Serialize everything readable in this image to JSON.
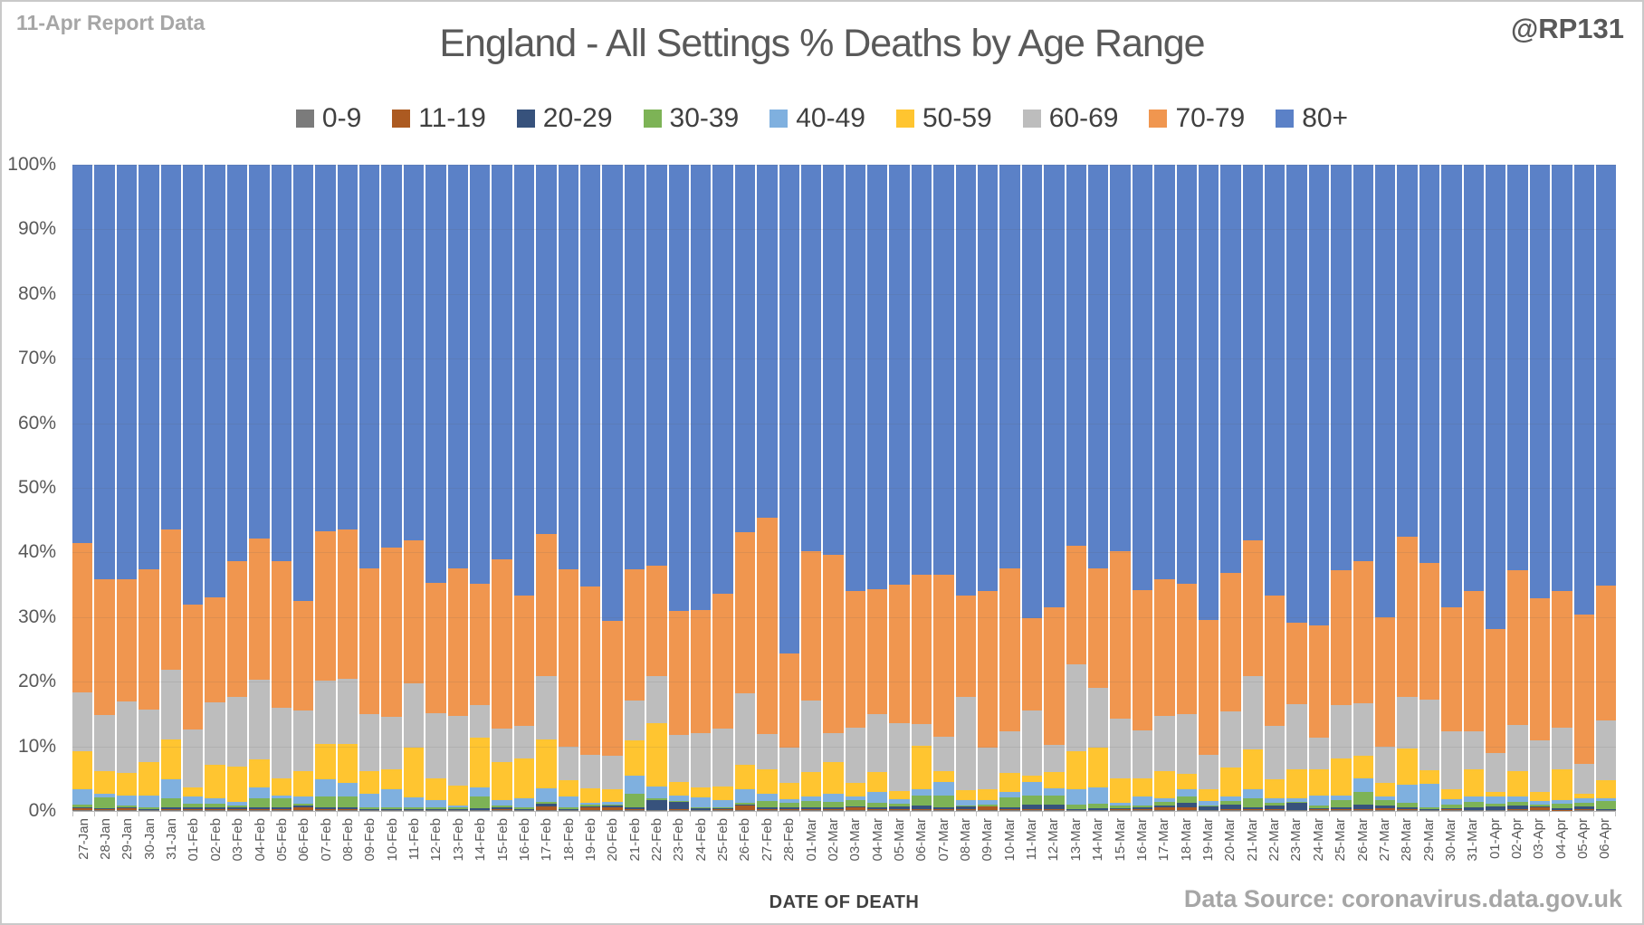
{
  "header": {
    "report_label": "11-Apr Report Data",
    "title": "England - All Settings % Deaths by Age Range",
    "handle": "@RP131"
  },
  "footer": {
    "xaxis_title": "DATE OF DEATH",
    "source": "Data Source: coronavirus.data.gov.uk"
  },
  "colors": {
    "background": "#ffffff",
    "border": "#c9c9c9",
    "text_dark": "#404040",
    "text_gray": "#595959",
    "text_light": "#a6a6a6",
    "gridline": "#d9d9d9"
  },
  "chart_data": {
    "type": "bar",
    "stacked": true,
    "stack_total": 100,
    "title": "England - All Settings % Deaths by Age Range",
    "xlabel": "DATE OF DEATH",
    "ylabel": "",
    "ylim": [
      0,
      100
    ],
    "ytick_step": 10,
    "ytick_labels": [
      "0%",
      "10%",
      "20%",
      "30%",
      "40%",
      "50%",
      "60%",
      "70%",
      "80%",
      "90%",
      "100%"
    ],
    "grid": true,
    "legend_position": "top",
    "categories": [
      "27-Jan",
      "28-Jan",
      "29-Jan",
      "30-Jan",
      "31-Jan",
      "01-Feb",
      "02-Feb",
      "03-Feb",
      "04-Feb",
      "05-Feb",
      "06-Feb",
      "07-Feb",
      "08-Feb",
      "09-Feb",
      "10-Feb",
      "11-Feb",
      "12-Feb",
      "13-Feb",
      "14-Feb",
      "15-Feb",
      "16-Feb",
      "17-Feb",
      "18-Feb",
      "19-Feb",
      "20-Feb",
      "21-Feb",
      "22-Feb",
      "23-Feb",
      "24-Feb",
      "25-Feb",
      "26-Feb",
      "27-Feb",
      "28-Feb",
      "01-Mar",
      "02-Mar",
      "03-Mar",
      "04-Mar",
      "05-Mar",
      "06-Mar",
      "07-Mar",
      "08-Mar",
      "09-Mar",
      "10-Mar",
      "11-Mar",
      "12-Mar",
      "13-Mar",
      "14-Mar",
      "15-Mar",
      "16-Mar",
      "17-Mar",
      "18-Mar",
      "19-Mar",
      "20-Mar",
      "21-Mar",
      "22-Mar",
      "23-Mar",
      "24-Mar",
      "25-Mar",
      "26-Mar",
      "27-Mar",
      "28-Mar",
      "29-Mar",
      "30-Mar",
      "31-Mar",
      "01-Apr",
      "02-Apr",
      "03-Apr",
      "04-Apr",
      "05-Apr",
      "06-Apr"
    ],
    "series": [
      {
        "name": "0-9",
        "color": "#7b7b7b",
        "values": [
          0.15,
          0.1,
          0.1,
          0.1,
          0.1,
          0.1,
          0.1,
          0.1,
          0.1,
          0.15,
          0.2,
          0.1,
          0.1,
          0.1,
          0.1,
          0.1,
          0.1,
          0.1,
          0.1,
          0.1,
          0.1,
          0.2,
          0.1,
          0.15,
          0.1,
          0.1,
          0.1,
          0.1,
          0.1,
          0.1,
          0.15,
          0.1,
          0.15,
          0.1,
          0.1,
          0.1,
          0.1,
          0.1,
          0.15,
          0.1,
          0.1,
          0.15,
          0.1,
          0.1,
          0.1,
          0.1,
          0.1,
          0.15,
          0.1,
          0.2,
          0.2,
          0.1,
          0.1,
          0.1,
          0.1,
          0.1,
          0.1,
          0.15,
          0.15,
          0.2,
          0.2,
          0.1,
          0.15,
          0.1,
          0.1,
          0.15,
          0.1,
          0.05,
          0.15,
          0.15
        ]
      },
      {
        "name": "11-19",
        "color": "#ac5a21",
        "values": [
          0.25,
          0.2,
          0.3,
          0.1,
          0.2,
          0.2,
          0.2,
          0.2,
          0.2,
          0.15,
          0.4,
          0.2,
          0.2,
          0.1,
          0.1,
          0.1,
          0.1,
          0.1,
          0.1,
          0.2,
          0.1,
          0.45,
          0.1,
          0.35,
          0.45,
          0.2,
          0.1,
          0.15,
          0.1,
          0.15,
          0.65,
          0.2,
          0.15,
          0.15,
          0.2,
          0.45,
          0.15,
          0.15,
          0.15,
          0.2,
          0.2,
          0.5,
          0.15,
          0.2,
          0.2,
          0.1,
          0.1,
          0.1,
          0.2,
          0.3,
          0.3,
          0.1,
          0.2,
          0.2,
          0.2,
          0.1,
          0.15,
          0.15,
          0.15,
          0.2,
          0.1,
          0.05,
          0.1,
          0.1,
          0.05,
          0.15,
          0.5,
          0.05,
          0.15,
          0.05
        ]
      },
      {
        "name": "20-29",
        "color": "#37527c",
        "values": [
          0.1,
          0.15,
          0.1,
          0.1,
          0.3,
          0.2,
          0.3,
          0.25,
          0.2,
          0.2,
          0.2,
          0.2,
          0.2,
          0.1,
          0.1,
          0.1,
          0.1,
          0.1,
          0.2,
          0.2,
          0.1,
          0.45,
          0.1,
          0.15,
          0.25,
          0.25,
          1.5,
          1.15,
          0.15,
          0.15,
          0.2,
          0.2,
          0.2,
          0.3,
          0.2,
          0.2,
          0.25,
          0.5,
          0.5,
          0.2,
          0.4,
          0.1,
          0.3,
          0.7,
          0.7,
          0.1,
          0.25,
          0.15,
          0.2,
          0.3,
          0.7,
          0.5,
          0.65,
          0.25,
          0.5,
          1.0,
          0.15,
          0.2,
          0.7,
          0.5,
          0.2,
          0.15,
          0.15,
          0.3,
          0.6,
          0.6,
          0.1,
          0.35,
          0.35,
          0.1
        ]
      },
      {
        "name": "30-39",
        "color": "#7db356",
        "values": [
          0.5,
          1.7,
          0.4,
          0.2,
          1.3,
          0.6,
          0.5,
          0.3,
          1.5,
          1.5,
          0.3,
          1.7,
          1.7,
          0.2,
          0.2,
          0.3,
          0.2,
          0.3,
          1.8,
          0.3,
          0.2,
          0.3,
          0.2,
          0.35,
          0.2,
          2.1,
          0.2,
          0.2,
          0.15,
          0.2,
          0.25,
          1.0,
          0.8,
          1.05,
          0.9,
          0.9,
          0.8,
          0.4,
          1.6,
          1.9,
          0.2,
          0.25,
          1.6,
          1.4,
          1.4,
          0.7,
          0.65,
          0.5,
          0.3,
          0.6,
          1.0,
          0.2,
          0.55,
          1.45,
          0.5,
          0.2,
          0.4,
          1.2,
          2.0,
          0.75,
          0.7,
          0.2,
          0.6,
          0.9,
          0.3,
          0.5,
          0.3,
          0.65,
          0.6,
          1.2
        ]
      },
      {
        "name": "40-49",
        "color": "#7fb0df",
        "values": [
          2.4,
          0.55,
          1.5,
          1.9,
          3.0,
          1.2,
          0.8,
          0.55,
          1.6,
          0.4,
          1.1,
          2.7,
          2.1,
          2.1,
          2.8,
          1.45,
          1.2,
          0.2,
          1.5,
          0.9,
          1.4,
          2.05,
          1.8,
          0.3,
          0.4,
          2.75,
          1.9,
          0.8,
          1.55,
          1.1,
          2.05,
          1.2,
          0.45,
          0.7,
          1.25,
          0.55,
          1.7,
          0.65,
          1.0,
          2.1,
          0.8,
          0.7,
          0.85,
          2.1,
          1.05,
          2.3,
          2.5,
          0.4,
          1.5,
          0.6,
          1.1,
          0.7,
          0.8,
          1.4,
          0.7,
          0.6,
          1.6,
          0.7,
          2.0,
          0.55,
          2.9,
          3.7,
          0.75,
          0.8,
          1.25,
          0.9,
          0.6,
          0.6,
          0.65,
          0.4
        ]
      },
      {
        "name": "50-59",
        "color": "#ffc530",
        "values": [
          5.8,
          3.5,
          3.5,
          5.2,
          6.2,
          1.4,
          5.3,
          5.5,
          4.4,
          2.7,
          4.0,
          5.5,
          6.1,
          3.5,
          3.1,
          7.75,
          3.3,
          3.1,
          7.7,
          5.9,
          6.2,
          7.65,
          2.5,
          2.15,
          2.0,
          5.5,
          9.8,
          2.1,
          1.65,
          2.1,
          3.9,
          3.8,
          2.65,
          3.7,
          4.85,
          2.2,
          3.0,
          1.3,
          6.7,
          1.6,
          1.5,
          1.6,
          2.85,
          0.9,
          2.55,
          5.9,
          6.2,
          3.8,
          2.7,
          4.1,
          2.5,
          1.7,
          4.4,
          6.1,
          2.85,
          4.5,
          4.0,
          5.7,
          3.6,
          2.2,
          5.6,
          2.05,
          1.65,
          4.3,
          0.7,
          3.8,
          1.4,
          4.8,
          0.8,
          2.8
        ]
      },
      {
        "name": "60-69",
        "color": "#bdbdbd",
        "values": [
          9.1,
          8.6,
          11.1,
          8.1,
          10.7,
          8.9,
          9.6,
          10.7,
          12.3,
          10.8,
          9.4,
          9.8,
          10.0,
          8.9,
          8.2,
          10.0,
          10.1,
          10.8,
          5.0,
          5.1,
          5.0,
          9.8,
          5.1,
          5.25,
          5.2,
          6.2,
          7.3,
          7.3,
          8.3,
          9.0,
          11.0,
          5.4,
          5.4,
          11.1,
          4.6,
          8.5,
          9.0,
          10.5,
          3.3,
          5.4,
          14.4,
          6.55,
          6.45,
          10.1,
          4.2,
          13.45,
          9.3,
          9.2,
          7.4,
          8.6,
          9.2,
          5.4,
          8.7,
          11.4,
          8.25,
          10.0,
          5.0,
          8.3,
          8.0,
          5.6,
          8.0,
          10.95,
          8.9,
          5.8,
          5.9,
          7.2,
          7.9,
          6.4,
          4.6,
          9.3
        ]
      },
      {
        "name": "70-79",
        "color": "#f0964f",
        "values": [
          23.1,
          21.0,
          18.8,
          21.7,
          21.7,
          19.3,
          16.2,
          21.1,
          21.9,
          22.7,
          16.9,
          23.1,
          23.1,
          22.5,
          26.2,
          22.1,
          20.2,
          22.8,
          18.7,
          26.2,
          20.2,
          21.9,
          27.5,
          26.0,
          20.8,
          20.3,
          17.1,
          19.1,
          19.1,
          20.8,
          24.9,
          33.5,
          14.5,
          23.1,
          27.5,
          21.1,
          19.3,
          21.4,
          23.1,
          25.1,
          15.7,
          24.25,
          25.2,
          14.3,
          21.3,
          18.35,
          18.5,
          25.9,
          21.8,
          21.2,
          20.1,
          20.8,
          21.5,
          21.0,
          20.2,
          12.6,
          17.3,
          20.9,
          22.0,
          20.0,
          24.8,
          21.2,
          19.2,
          21.8,
          19.2,
          23.9,
          22.0,
          21.2,
          23.1,
          20.9
        ]
      },
      {
        "name": "80+",
        "color": "#5b81c7",
        "values": [
          58.6,
          64.2,
          64.2,
          62.6,
          56.5,
          68.1,
          67.0,
          61.3,
          57.8,
          61.4,
          67.5,
          56.7,
          56.5,
          62.5,
          59.2,
          58.1,
          64.7,
          62.5,
          64.9,
          61.1,
          66.7,
          57.2,
          62.6,
          65.3,
          70.6,
          62.6,
          62.0,
          69.1,
          68.9,
          66.4,
          56.9,
          54.6,
          75.7,
          59.8,
          60.4,
          66.0,
          65.7,
          65.0,
          63.5,
          63.4,
          66.7,
          65.9,
          62.5,
          70.2,
          68.5,
          59.0,
          62.4,
          59.8,
          65.8,
          64.1,
          64.9,
          70.5,
          63.1,
          58.1,
          66.7,
          70.9,
          71.3,
          62.7,
          61.4,
          70.0,
          57.5,
          61.6,
          68.5,
          65.9,
          71.9,
          62.8,
          67.1,
          65.9,
          69.6,
          65.1
        ]
      }
    ]
  }
}
